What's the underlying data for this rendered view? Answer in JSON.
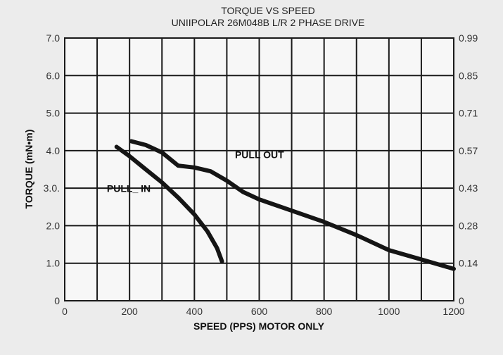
{
  "chart_data": {
    "type": "line",
    "title": "TORQUE VS SPEED",
    "subtitle": "UNIIPOLAR 26M048B L/R 2 PHASE DRIVE",
    "xlabel": "SPEED (PPS) MOTOR ONLY",
    "ylabel": "TORQUE (mN•m)",
    "xlim": [
      0,
      1200
    ],
    "ylim": [
      0,
      7
    ],
    "x_ticks": [
      0,
      200,
      400,
      600,
      800,
      1000,
      1200
    ],
    "x_tick_labels": [
      "0",
      "200",
      "400",
      "600",
      "800",
      "1000",
      "1200"
    ],
    "y_ticks": [
      0,
      1,
      2,
      3,
      4,
      5,
      6,
      7
    ],
    "y_tick_labels": [
      "0",
      "1.0",
      "2.0",
      "3.0.",
      "4.0",
      "5.0",
      "6.0",
      "7.0"
    ],
    "y2_tick_labels": [
      "0",
      "0.14",
      "0.28",
      "0.43",
      "0.57",
      "0.71",
      "0.85",
      "0.99"
    ],
    "grid": true,
    "x_grid_step": 100,
    "series": [
      {
        "name": "PULL IN",
        "label_text": "PULL_ IN",
        "label_at": [
          130,
          2.9
        ],
        "x": [
          160,
          200,
          250,
          300,
          350,
          400,
          440,
          470,
          485
        ],
        "y": [
          4.1,
          3.85,
          3.5,
          3.15,
          2.75,
          2.3,
          1.85,
          1.4,
          1.05
        ]
      },
      {
        "name": "PULL OUT",
        "label_text": "PULL OUT",
        "label_at": [
          525,
          3.8
        ],
        "x": [
          205,
          250,
          300,
          350,
          400,
          450,
          500,
          550,
          600,
          700,
          800,
          900,
          1000,
          1100,
          1200
        ],
        "y": [
          4.25,
          4.15,
          3.95,
          3.6,
          3.55,
          3.45,
          3.2,
          2.9,
          2.7,
          2.4,
          2.1,
          1.75,
          1.35,
          1.1,
          0.85
        ]
      }
    ]
  }
}
